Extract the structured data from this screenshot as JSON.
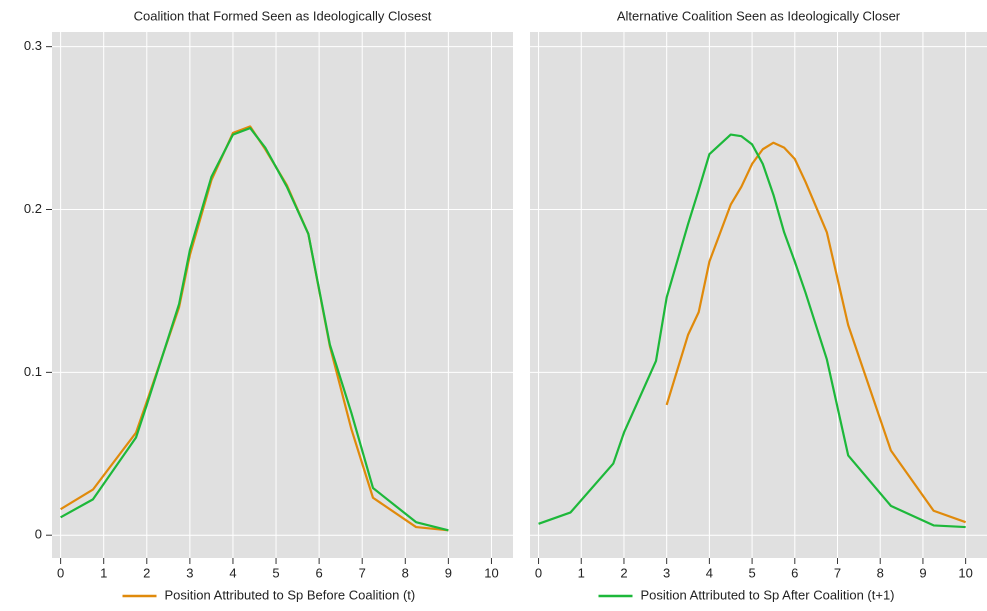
{
  "chart_data": [
    {
      "type": "line",
      "title": "Coalition that Formed Seen as Ideologically Closest",
      "x": [
        0,
        0.75,
        1.75,
        2,
        2.75,
        3,
        3.5,
        4,
        4.4,
        4.75,
        5.25,
        5.75,
        6.25,
        6.75,
        7.25,
        8.25,
        9
      ],
      "series": [
        {
          "name": "Position Attributed to Sp Before Coalition (t)",
          "color": "#e08a0b",
          "values": [
            0.016,
            0.028,
            0.063,
            0.082,
            0.14,
            0.172,
            0.218,
            0.247,
            0.251,
            0.237,
            0.215,
            0.185,
            0.116,
            0.065,
            0.023,
            0.005,
            0.003
          ]
        },
        {
          "name": "Position Attributed to Sp After Coalition (t+1)",
          "color": "#1db83a",
          "values": [
            0.011,
            0.022,
            0.06,
            0.08,
            0.142,
            0.175,
            0.22,
            0.246,
            0.25,
            0.238,
            0.214,
            0.185,
            0.117,
            0.075,
            0.029,
            0.008,
            0.003
          ]
        }
      ],
      "xlim": [
        -0.2,
        10.5
      ],
      "xticks": [
        0,
        1,
        2,
        3,
        4,
        5,
        6,
        7,
        8,
        9,
        10
      ],
      "ylim": [
        -0.014,
        0.309
      ],
      "yticks": [
        0,
        0.1,
        0.2,
        0.3
      ],
      "grid": true,
      "legend": "bottom"
    },
    {
      "type": "line",
      "title": "Alternative Coalition Seen as Ideologically Closer",
      "x": [
        0,
        0.75,
        1.75,
        2,
        2.75,
        3,
        3.5,
        3.75,
        4,
        4.5,
        4.75,
        5,
        5.25,
        5.5,
        5.75,
        6,
        6.25,
        6.75,
        7.25,
        8.25,
        9.25,
        10
      ],
      "series": [
        {
          "color": "#e08a0b",
          "values": [
            null,
            null,
            null,
            null,
            null,
            0.08,
            0.123,
            0.137,
            0.168,
            0.203,
            0.214,
            0.228,
            0.237,
            0.241,
            0.238,
            0.231,
            0.217,
            0.186,
            0.129,
            0.052,
            0.015,
            0.008
          ]
        },
        {
          "color": "#1db83a",
          "values": [
            0.007,
            0.014,
            0.044,
            0.063,
            0.107,
            0.146,
            0.191,
            0.212,
            0.234,
            0.246,
            0.245,
            0.24,
            0.228,
            0.209,
            0.186,
            0.168,
            0.149,
            0.108,
            0.049,
            0.018,
            0.006,
            0.005
          ]
        }
      ],
      "xlim": [
        -0.2,
        10.5
      ],
      "xticks": [
        0,
        1,
        2,
        3,
        4,
        5,
        6,
        7,
        8,
        9,
        10
      ],
      "ylim": [
        -0.014,
        0.309
      ],
      "yticks": [
        0,
        0.1,
        0.2,
        0.3
      ],
      "grid": true
    }
  ]
}
